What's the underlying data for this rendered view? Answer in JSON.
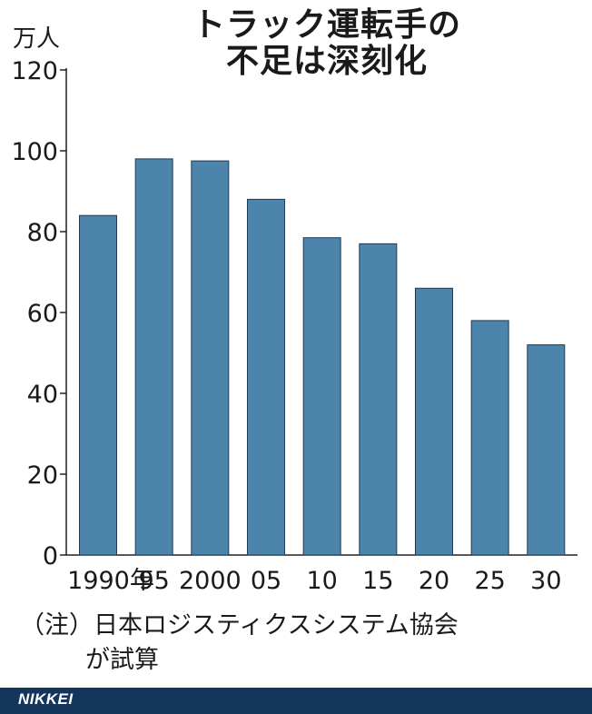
{
  "header": {
    "title_line1": "トラック運転手の",
    "title_line2": "不足は深刻化",
    "unit": "万人"
  },
  "chart_data": {
    "type": "bar",
    "categories": [
      "1990年",
      "95",
      "2000",
      "05",
      "10",
      "15",
      "20",
      "25",
      "30"
    ],
    "values": [
      84,
      98,
      97.5,
      88,
      78.5,
      77,
      66,
      58,
      52
    ],
    "ylim": [
      0,
      120
    ],
    "yticks": [
      0,
      20,
      40,
      60,
      80,
      100,
      120
    ],
    "ytick_labels": [
      "0",
      "20",
      "40",
      "60",
      "80",
      "100",
      "120"
    ],
    "grid": false,
    "bar_color": "#4d84ac"
  },
  "note": {
    "line1": "（注）日本ロジスティクスシステム協会",
    "line2": "が試算"
  },
  "footer": {
    "brand": "NIKKEI",
    "bg_color": "#14365c"
  }
}
